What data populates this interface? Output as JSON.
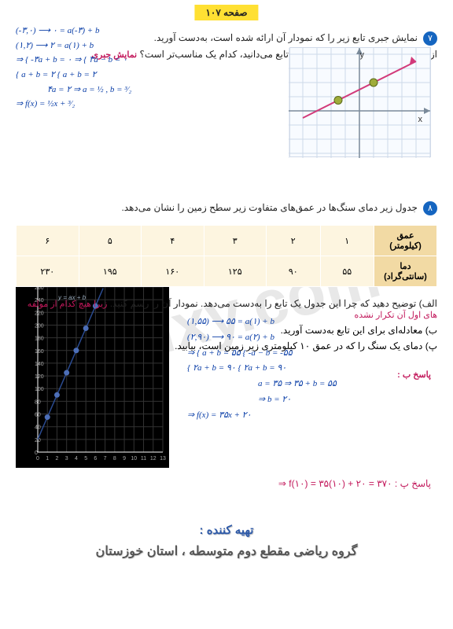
{
  "page_number": "صفحه ۱۰۷",
  "watermark": "Galxy.com",
  "q7": {
    "badge": "۷",
    "text": "نمایش جبری تابع زیر را که نمودار آن ارائه شده است، به‌دست آورید.",
    "sub": "از بین نمایش‌های مختلفی که برای این تابع می‌دانید، کدام یک مناسب‌تر است؟",
    "answer_label": "نمایش جبری"
  },
  "math_left": {
    "l1": "(-۳,۰) ⟶ ۰ = a(-۳) + b",
    "l2": "(۱,۲) ⟶ ۲ = a(۱) + b",
    "l3": "⇒ { -۳a + b = ۰  ⇒  { ۳a − b = ۰",
    "l4": "    { a + b = ۲        { a + b = ۲",
    "l5": "۴a = ۲ ⇒ a = ½ , b = ³⁄₂",
    "l6": "⇒ f(x) = ½x + ³⁄₂"
  },
  "chart1": {
    "bg": "#f8fbff",
    "grid_color": "#cdd9e8",
    "axis_color": "#7a8a9a",
    "line_color": "#d23a7a",
    "points": [
      {
        "x": -1.5,
        "y": 0.75,
        "color": "#9fac3a"
      },
      {
        "x": 1,
        "y": 2,
        "color": "#9fac3a"
      }
    ],
    "grid_step": 18,
    "labels": {
      "x": "x",
      "y": "y"
    }
  },
  "q8": {
    "badge": "۸",
    "text": "جدول زیر دمای سنگ‌ها در عمق‌های متفاوت زیر سطح زمین را نشان می‌دهد."
  },
  "table": {
    "row1_hdr": "عمق (کیلومتر)",
    "row2_hdr": "دما (سانتی‌گراد)",
    "cols": [
      "۱",
      "۲",
      "۳",
      "۴",
      "۵",
      "۶"
    ],
    "vals": [
      "۵۵",
      "۹۰",
      "۱۲۵",
      "۱۶۰",
      "۱۹۵",
      "۲۳۰"
    ]
  },
  "q8_sub": {
    "a": "الف) توضیح دهید که چرا این جدول یک تابع را به‌دست می‌دهد. نمودار آن را رسم کنید.",
    "a_note": "زیرا هیچ کدام از مولفه های اول آن تکرار نشده",
    "b": "ب) معادله‌ای برای این تابع به‌دست آورید.",
    "p": "پ) دمای یک سنگ را که در عمق ۱۰ کیلومتری زیر زمین است، بیابید."
  },
  "chart2": {
    "bg": "#000000",
    "grid_color": "#333333",
    "axis_color": "#ffffff",
    "point_color": "#4d6fb8",
    "fit_line_color": "#2a4a8f",
    "data": [
      {
        "x": 1,
        "y": 55
      },
      {
        "x": 2,
        "y": 90
      },
      {
        "x": 3,
        "y": 125
      },
      {
        "x": 4,
        "y": 160
      },
      {
        "x": 5,
        "y": 195
      },
      {
        "x": 6,
        "y": 230
      }
    ],
    "xlim": [
      0,
      13
    ],
    "ylim": [
      0,
      260
    ],
    "xtick_step": 1,
    "ytick_step": 20,
    "annotation": "y = ax + b"
  },
  "math_right": {
    "l1": "(۱,۵۵) ⟶ ۵۵ = a(۱) + b",
    "l2": "(۲,۹۰) ⟶ ۹۰ = a(۲) + b",
    "l3": "⇒ { a + b = ۵۵   { -a − b = -۵۵",
    "l4": "    { ۲a + b = ۹۰  { ۲a + b = ۹۰",
    "l5": "a = ۳۵ ⇒ ۳۵ + b = ۵۵",
    "l6": "⇒ b = ۲۰",
    "l7": "⇒ f(x) = ۳۵x + ۲۰"
  },
  "answer_b_label": "پاسخ ب :",
  "answer_p": "پاسخ پ : ۳۷۰ = ۲۰ + (۱۰)۳۵ = (۱۰)f ⇒",
  "credits": {
    "line1": "تهیه کننده :",
    "line2": "گروه ریاضی مقطع دوم متوسطه ، استان خوزستان"
  }
}
